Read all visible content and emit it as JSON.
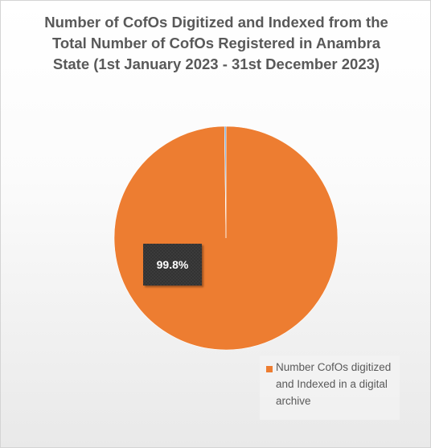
{
  "chart_data": {
    "type": "pie",
    "title": "Number of CofOs Digitized and Indexed from the Total Number of CofOs Registered in Anambra State (1st January 2023 - 31st December 2023)",
    "slices": [
      {
        "name": "Number CofOs digitized and Indexed in a digital archive",
        "value": 99.8,
        "label": "99.8%",
        "color": "#ED7D31"
      },
      {
        "name": "",
        "value": 0.2,
        "label": "",
        "color": "#5B9BD5"
      }
    ],
    "legend": {
      "placement": "bottom-right",
      "entries": [
        "Number CofOs digitized and Indexed in a digital archive"
      ]
    },
    "data_label_style": "dark-patterned-box"
  }
}
